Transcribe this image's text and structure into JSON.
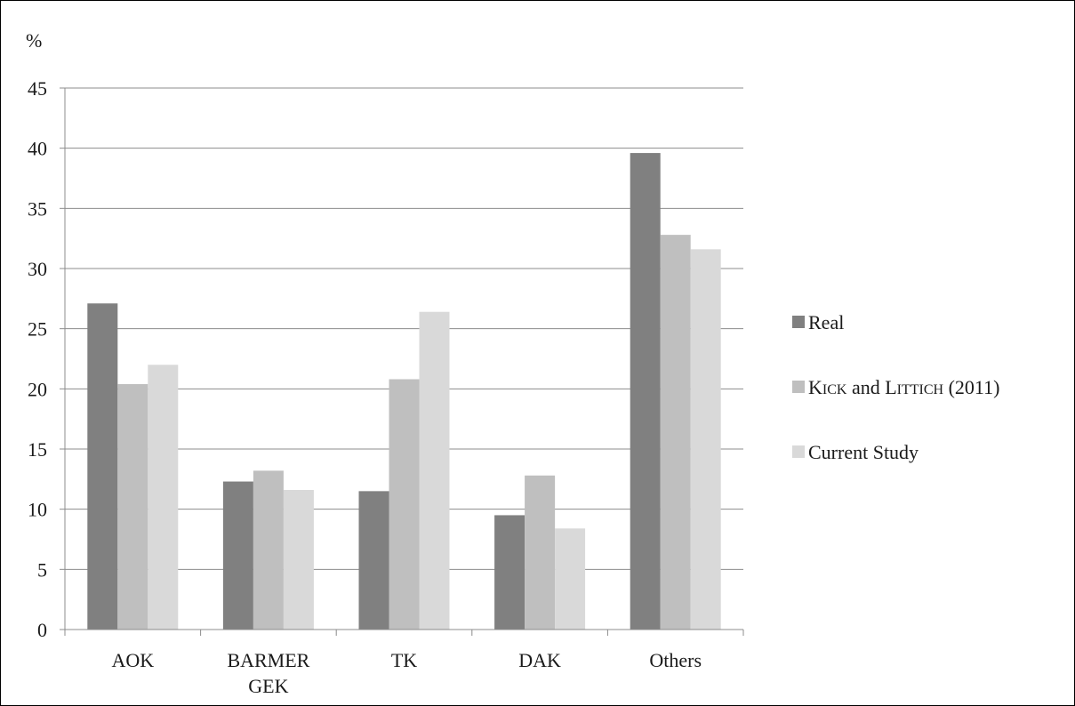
{
  "chart_data": {
    "type": "bar",
    "ylabel": "%",
    "ylim": [
      0,
      45
    ],
    "yticks": [
      0,
      5,
      10,
      15,
      20,
      25,
      30,
      35,
      40,
      45
    ],
    "grid": true,
    "legend_position": "right",
    "categories": [
      [
        "AOK"
      ],
      [
        "BARMER",
        "GEK"
      ],
      [
        "TK"
      ],
      [
        "DAK"
      ],
      [
        "Others"
      ]
    ],
    "series": [
      {
        "name": "Real",
        "color": "#808080",
        "values": [
          27.1,
          12.3,
          11.5,
          9.5,
          39.6
        ]
      },
      {
        "name": "Kick and Littich (2011)",
        "color": "#bfbfbf",
        "values": [
          20.4,
          13.2,
          20.8,
          12.8,
          32.8
        ]
      },
      {
        "name": "Current Study",
        "color": "#d9d9d9",
        "values": [
          22.0,
          11.6,
          26.4,
          8.4,
          31.6
        ]
      }
    ]
  },
  "legend_parts": [
    [
      [
        "t",
        "Real"
      ]
    ],
    [
      [
        "t",
        "K"
      ],
      [
        "s",
        "ICK"
      ],
      [
        "t",
        " and L"
      ],
      [
        "s",
        "ITTICH"
      ],
      [
        "t",
        " (2011)"
      ]
    ],
    [
      [
        "t",
        "Current Study"
      ]
    ]
  ]
}
